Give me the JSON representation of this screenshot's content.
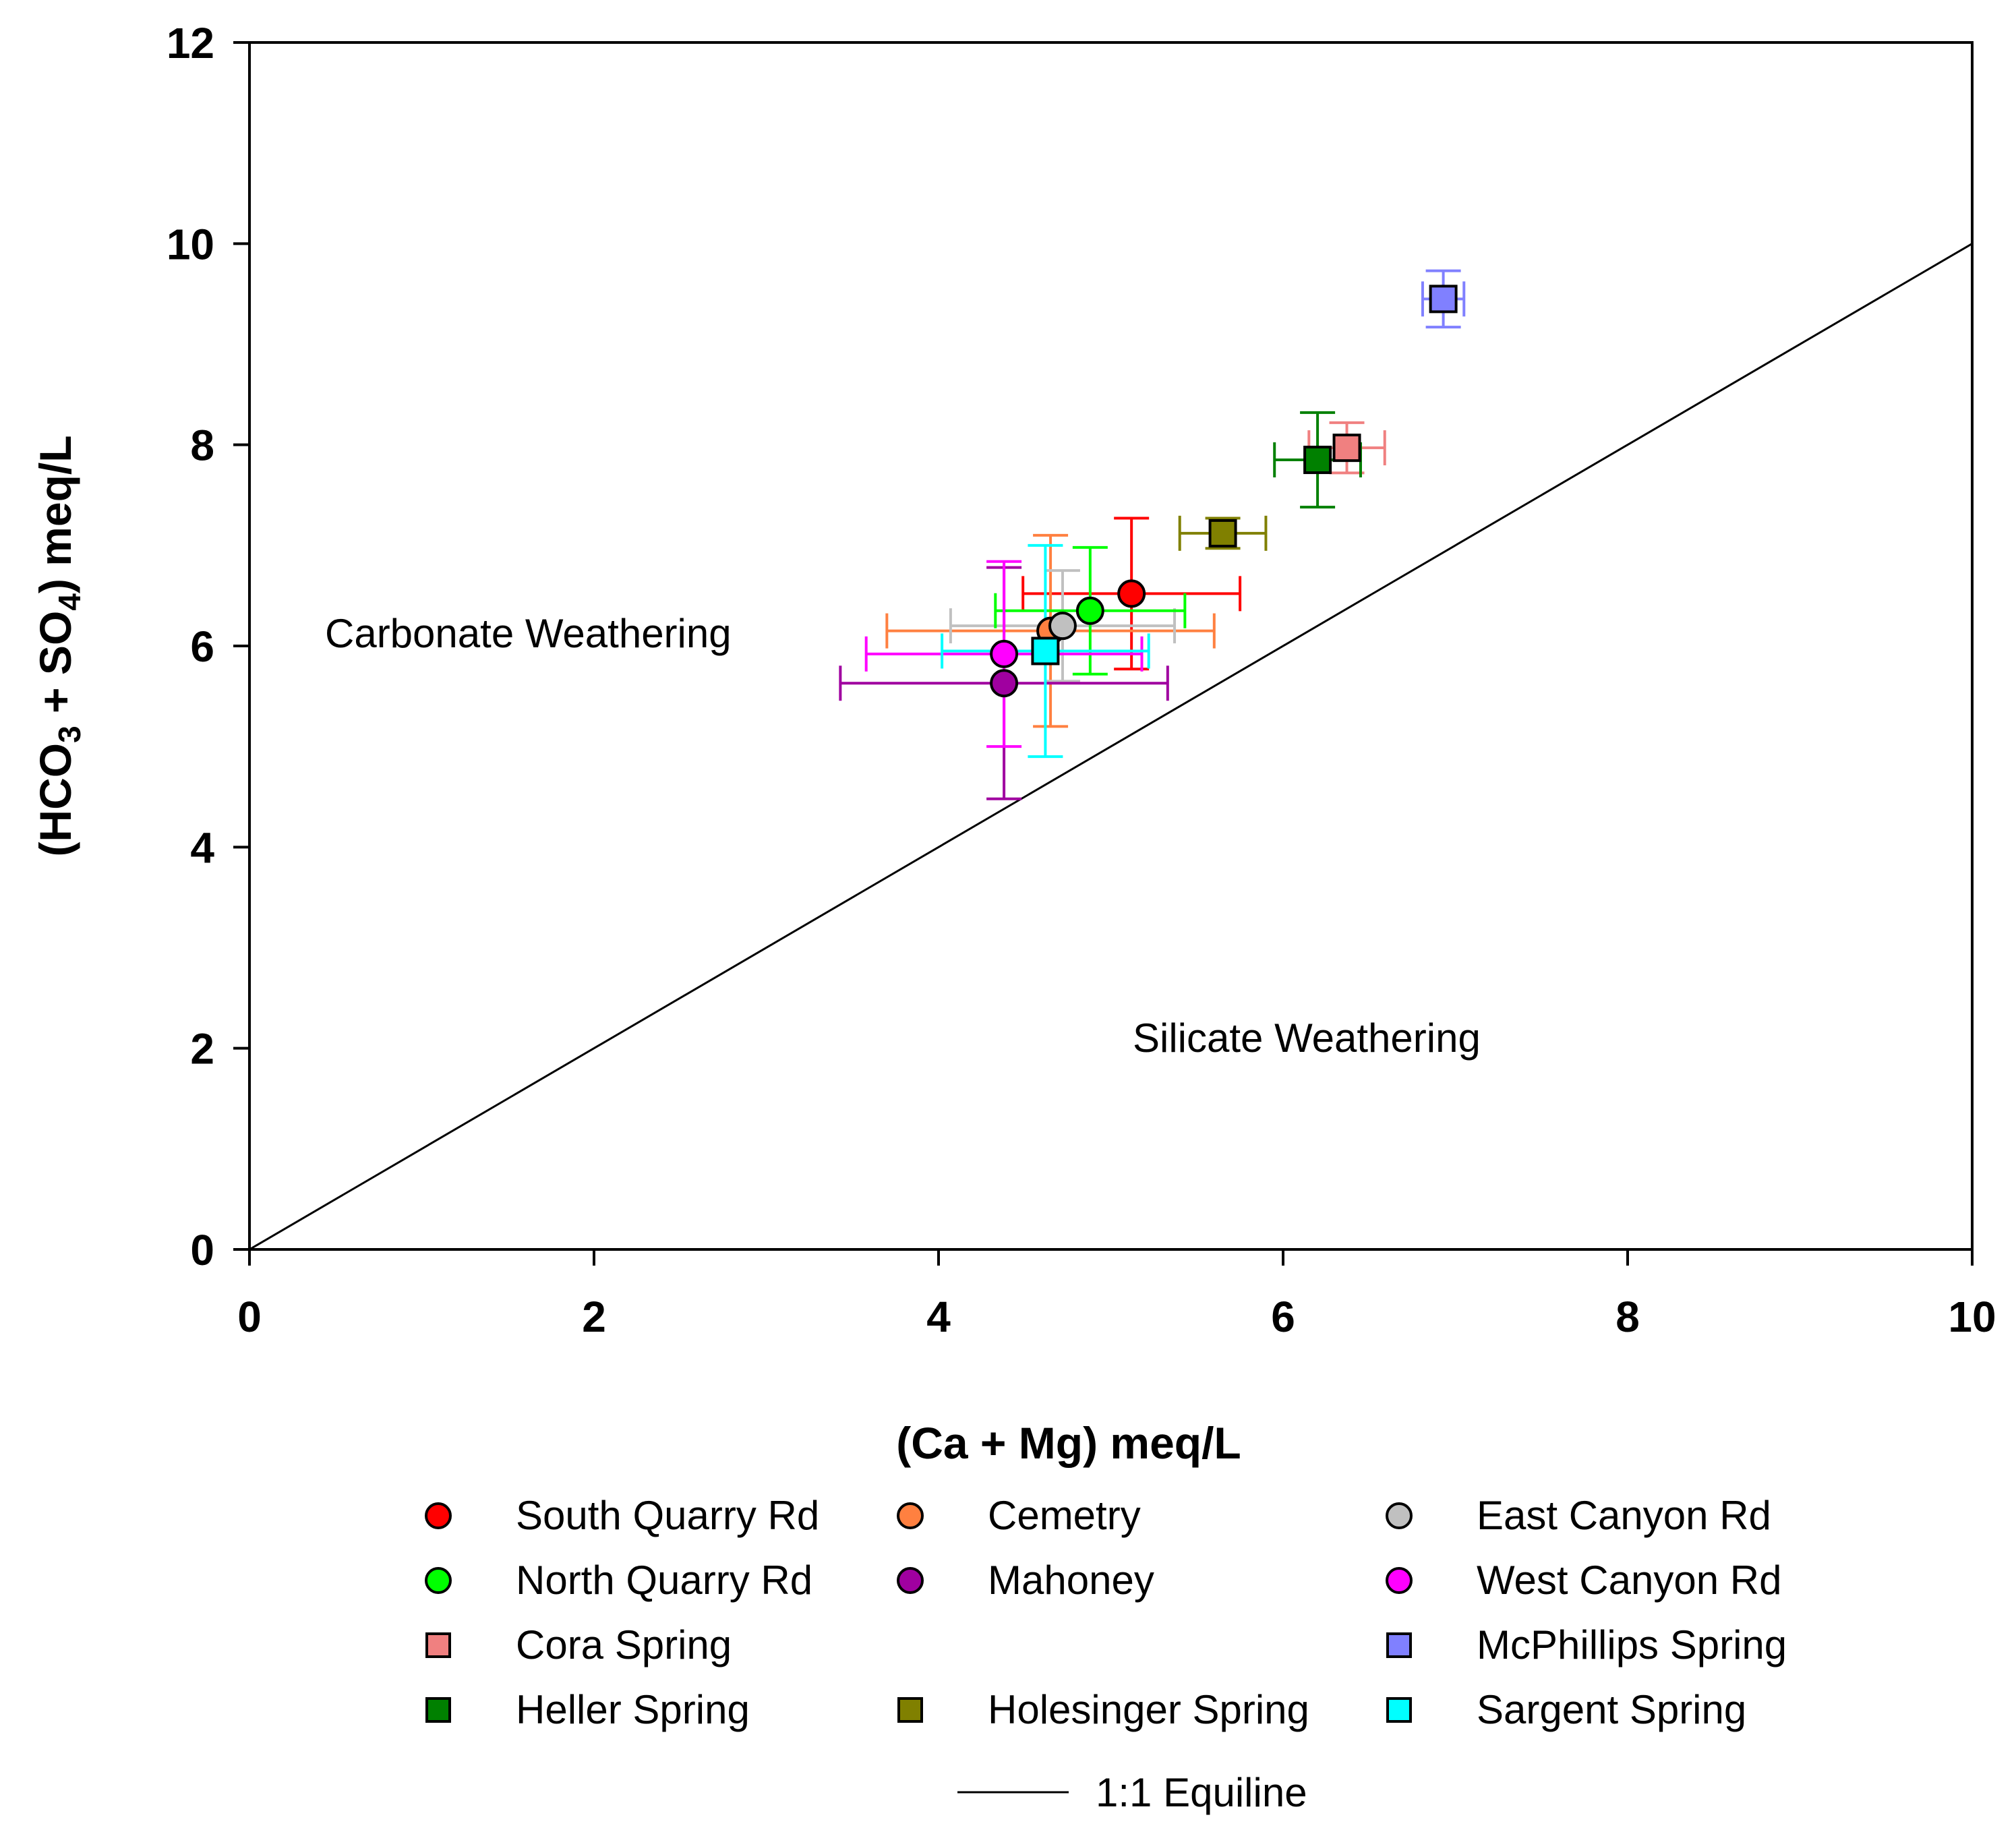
{
  "chart_data": {
    "type": "scatter",
    "title": "",
    "xlabel": "(Ca + Mg) meq/L",
    "ylabel": {
      "prefix": "(HCO",
      "sub1": "3",
      "mid": " + SO",
      "sub2": "4",
      "suffix": ") meq/L"
    },
    "xlim": [
      0,
      10
    ],
    "ylim": [
      0,
      12
    ],
    "xticks": [
      "0",
      "2",
      "4",
      "6",
      "8",
      "10"
    ],
    "yticks": [
      "0",
      "2",
      "4",
      "6",
      "8",
      "10",
      "12"
    ],
    "grid": false,
    "annotations": {
      "carbonate": "Carbonate Weathering",
      "silicate": "Silicate Weathering"
    },
    "equiline": {
      "label": "1:1 Equiline",
      "x": [
        0,
        10
      ],
      "y": [
        0,
        10
      ]
    },
    "series": [
      {
        "name": "South Quarry Rd",
        "marker": "circle",
        "color": "#ff0000",
        "x": 5.12,
        "y": 6.52,
        "xerr": 0.63,
        "yerr": 0.75
      },
      {
        "name": "Cemetry",
        "marker": "circle",
        "color": "#ff8040",
        "x": 4.65,
        "y": 6.15,
        "xerr": 0.95,
        "yerr": 0.95
      },
      {
        "name": "East Canyon Rd",
        "marker": "circle",
        "color": "#c0c0c0",
        "x": 4.72,
        "y": 6.2,
        "xerr": 0.65,
        "yerr": 0.55
      },
      {
        "name": "North Quarry Rd",
        "marker": "circle",
        "color": "#00ff00",
        "x": 4.88,
        "y": 6.35,
        "xerr": 0.55,
        "yerr": 0.63
      },
      {
        "name": "Mahoney",
        "marker": "circle",
        "color": "#a000a0",
        "x": 4.38,
        "y": 5.63,
        "xerr": 0.95,
        "yerr": 1.15
      },
      {
        "name": "West Canyon Rd",
        "marker": "circle",
        "color": "#ff00ff",
        "x": 4.38,
        "y": 5.92,
        "xerr": 0.8,
        "yerr": 0.92
      },
      {
        "name": "Cora Spring",
        "marker": "square",
        "color": "#f08080",
        "x": 6.37,
        "y": 7.97,
        "xerr": 0.22,
        "yerr": 0.25
      },
      {
        "name": "McPhillips Spring",
        "marker": "square",
        "color": "#8080ff",
        "x": 6.93,
        "y": 9.45,
        "xerr": 0.12,
        "yerr": 0.28
      },
      {
        "name": "Heller Spring",
        "marker": "square",
        "color": "#008000",
        "x": 6.2,
        "y": 7.85,
        "xerr": 0.25,
        "yerr": 0.47
      },
      {
        "name": "Holesinger Spring",
        "marker": "square",
        "color": "#808000",
        "x": 5.65,
        "y": 7.12,
        "xerr": 0.25,
        "yerr": 0.15
      },
      {
        "name": "Sargent Spring",
        "marker": "square",
        "color": "#00ffff",
        "x": 4.62,
        "y": 5.95,
        "xerr": 0.6,
        "yerr": 1.05
      }
    ],
    "legend": {
      "placement": "bottom",
      "items": [
        {
          "name": "South Quarry Rd",
          "marker": "circle",
          "color": "#ff0000"
        },
        {
          "name": "Cemetry",
          "marker": "circle",
          "color": "#ff8040"
        },
        {
          "name": "East Canyon Rd",
          "marker": "circle",
          "color": "#c0c0c0"
        },
        {
          "name": "North Quarry Rd",
          "marker": "circle",
          "color": "#00ff00"
        },
        {
          "name": "Mahoney",
          "marker": "circle",
          "color": "#a000a0"
        },
        {
          "name": "West Canyon Rd",
          "marker": "circle",
          "color": "#ff00ff"
        },
        {
          "name": "Cora Spring",
          "marker": "square",
          "color": "#f08080"
        },
        {
          "name": "McPhillips Spring",
          "marker": "square",
          "color": "#8080ff"
        },
        {
          "name": "Heller Spring",
          "marker": "square",
          "color": "#008000"
        },
        {
          "name": "Holesinger Spring",
          "marker": "square",
          "color": "#808000"
        },
        {
          "name": "Sargent Spring",
          "marker": "square",
          "color": "#00ffff"
        },
        {
          "name": "1:1 Equiline",
          "marker": "line",
          "color": "#000000"
        }
      ]
    }
  }
}
